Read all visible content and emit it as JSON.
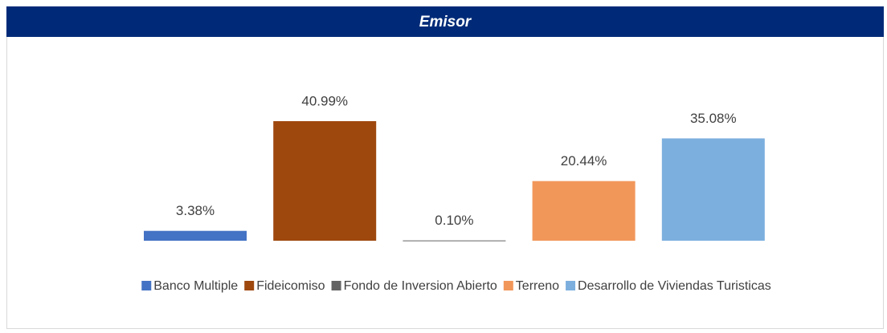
{
  "chart_data": {
    "type": "bar",
    "title": "Emisor",
    "categories": [
      "Banco Multiple",
      "Fideicomiso",
      "Fondo de Inversion Abierto",
      "Terreno",
      "Desarrollo de Viviendas Turisticas"
    ],
    "values": [
      3.38,
      40.99,
      0.1,
      20.44,
      35.08
    ],
    "value_labels": [
      "3.38%",
      "40.99%",
      "0.10%",
      "20.44%",
      "35.08%"
    ],
    "colors": [
      "#4472c4",
      "#9e480e",
      "#636363",
      "#f1975a",
      "#7cafde"
    ],
    "ylim": [
      0,
      45
    ],
    "legend": "bottom"
  }
}
